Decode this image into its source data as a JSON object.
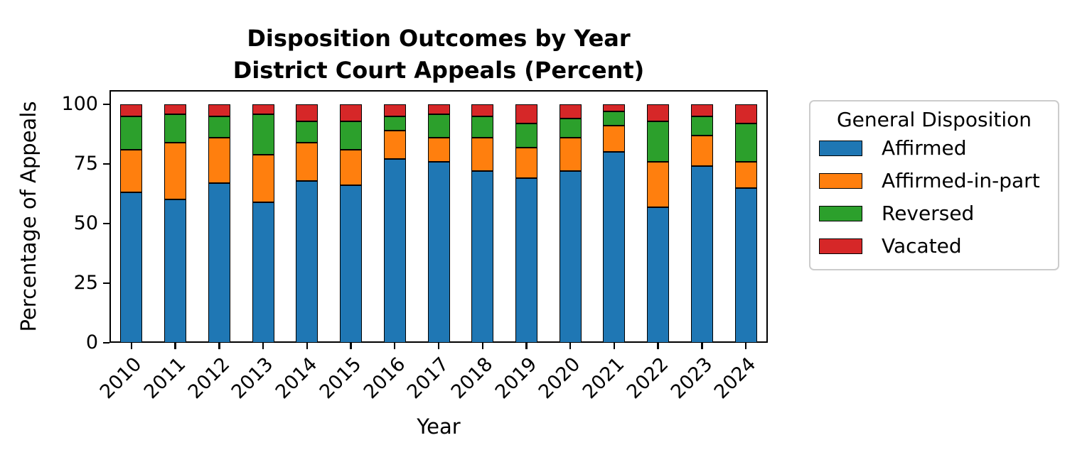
{
  "title": {
    "line1": "Disposition Outcomes by Year",
    "line2": "District Court Appeals (Percent)"
  },
  "chart_data": {
    "type": "bar",
    "stacked": true,
    "title": "Disposition Outcomes by Year\nDistrict Court Appeals (Percent)",
    "xlabel": "Year",
    "ylabel": "Percentage of Appeals",
    "categories": [
      "2010",
      "2011",
      "2012",
      "2013",
      "2014",
      "2015",
      "2016",
      "2017",
      "2018",
      "2019",
      "2020",
      "2021",
      "2022",
      "2023",
      "2024"
    ],
    "series": [
      {
        "name": "Affirmed",
        "color": "#1f77b4",
        "values": [
          63,
          60,
          67,
          59,
          68,
          66,
          77,
          76,
          72,
          69,
          72,
          80,
          57,
          74,
          65
        ]
      },
      {
        "name": "Affirmed-in-part",
        "color": "#ff7f0e",
        "values": [
          18,
          24,
          19,
          20,
          16,
          15,
          12,
          10,
          14,
          13,
          14,
          11,
          19,
          13,
          11
        ]
      },
      {
        "name": "Reversed",
        "color": "#2ca02c",
        "values": [
          14,
          12,
          9,
          17,
          9,
          12,
          6,
          10,
          9,
          10,
          8,
          6,
          17,
          8,
          16
        ]
      },
      {
        "name": "Vacated",
        "color": "#d62728",
        "values": [
          5,
          4,
          5,
          4,
          7,
          7,
          5,
          4,
          5,
          8,
          6,
          3,
          7,
          5,
          8
        ]
      }
    ],
    "yticks": [
      0,
      25,
      50,
      75,
      100
    ],
    "ylim": [
      0,
      106
    ],
    "grid": false,
    "legend_title": "General Disposition",
    "legend_position": "right",
    "bar_edge_color": "#000000"
  },
  "colors": {
    "background": "#ffffff",
    "axis": "#000000",
    "legend_border": "#cccccc"
  }
}
